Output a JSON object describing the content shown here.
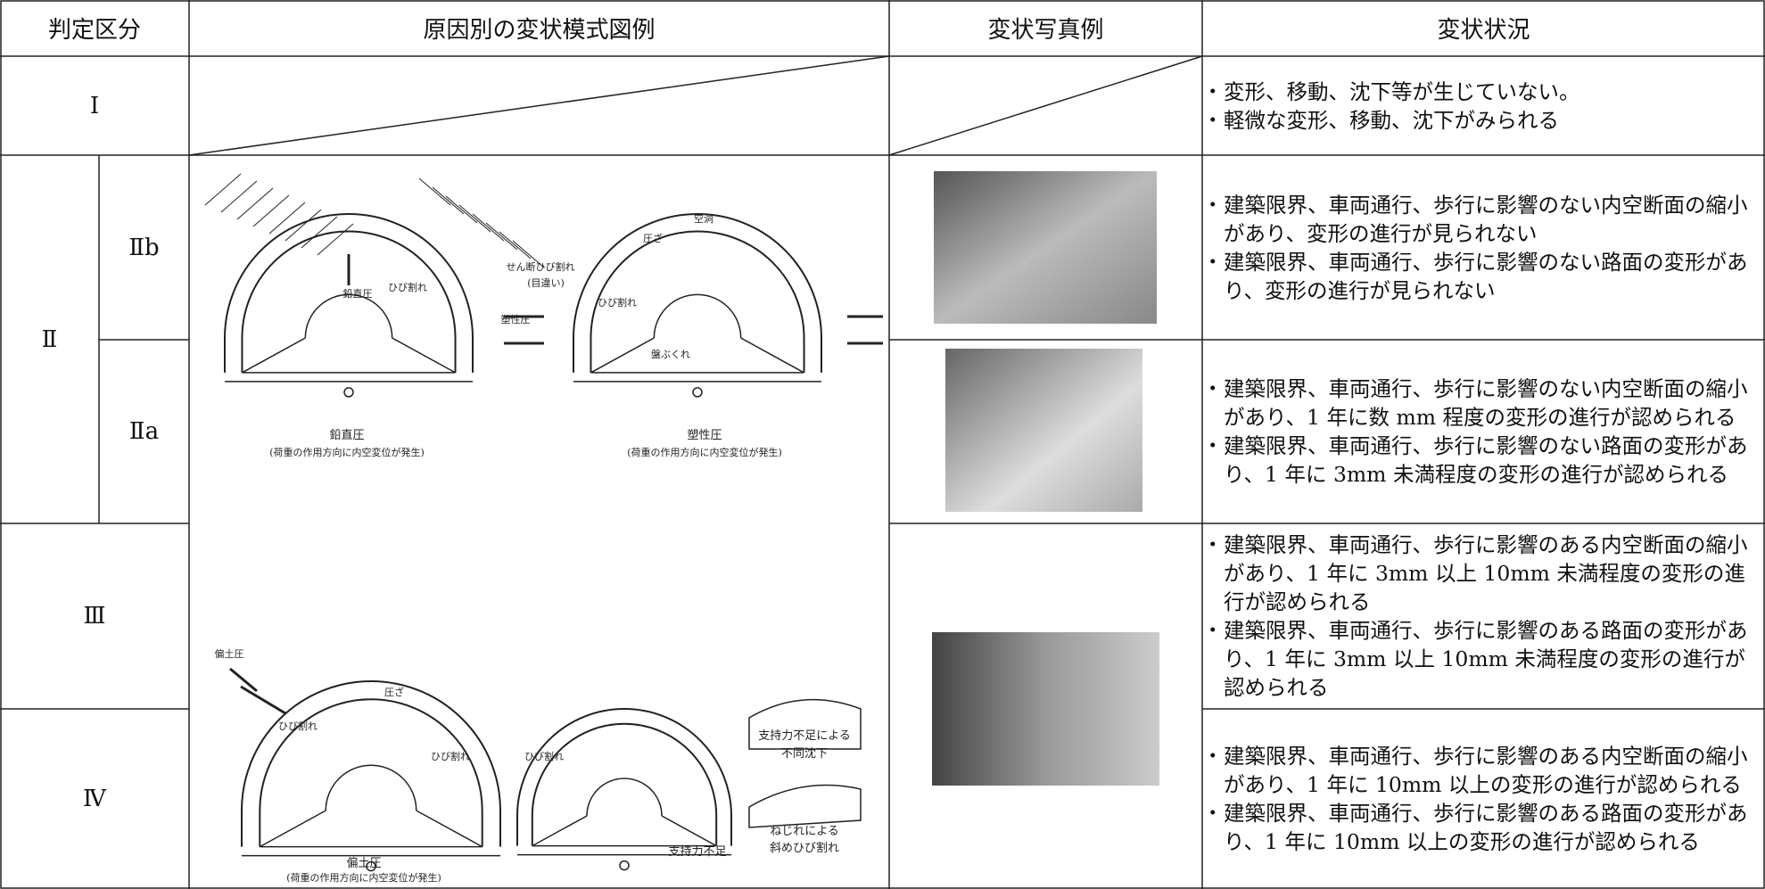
{
  "header": [
    "判定区分",
    "原因別の変状模式図例",
    "変状写真例",
    "変状状況"
  ],
  "grades": {
    "g1": "Ⅰ",
    "g2": "Ⅱ",
    "g2b": "Ⅱb",
    "g2a": "Ⅱa",
    "g3": "Ⅲ",
    "g4": "Ⅳ"
  },
  "status": [
    [
      "変形、移動、沈下等が生じていない。",
      "軽微な変形、移動、沈下がみられる"
    ],
    [
      "建築限界、車両通行、歩行に影響のない内空断面の縮小があり、変形の進行が見られない",
      "建築限界、車両通行、歩行に影響のない路面の変形があり、変形の進行が見られない"
    ],
    [
      "建築限界、車両通行、歩行に影響のない内空断面の縮小があり、1 年に数 mm 程度の変形の進行が認められる",
      "建築限界、車両通行、歩行に影響のない路面の変形があり、1 年に 3mm 未満程度の変形の進行が認められる"
    ],
    [
      "建築限界、車両通行、歩行に影響のある内空断面の縮小があり、1 年に 3mm 以上 10mm 未満程度の変形の進行が認められる",
      "建築限界、車両通行、歩行に影響のある路面の変形があり、1 年に 3mm 以上 10mm 未満程度の変形の進行が認められる"
    ],
    [
      "建築限界、車両通行、歩行に影響のある内空断面の縮小があり、1 年に 10mm 以上の変形の進行が認められる",
      "建築限界、車両通行、歩行に影響のある路面の変形があり、1 年に 10mm 以上の変形の進行が認められる"
    ]
  ],
  "diagrams": [
    {
      "labels": [
        "鉛直圧",
        "ひび割れ",
        "鉛直圧",
        "(荷重の作用方向に内空変位が発生)"
      ]
    },
    {
      "labels": [
        "空洞",
        "圧ざ",
        "せん断ひび割れ",
        "(目違い)",
        "ひび割れ",
        "塑性圧",
        "盤ぶくれ",
        "塑性圧",
        "(荷重の作用方向に内空変位が発生)"
      ]
    },
    {
      "labels": [
        "偏土圧",
        "圧ざ",
        "ひび割れ",
        "ひび割れ",
        "偏土圧",
        "(荷重の作用方向に内空変位が発生)"
      ]
    },
    {
      "labels": [
        "ひび割れ",
        "支持力不足"
      ]
    },
    {
      "labels": [
        "支持力不足による",
        "不同沈下",
        "ねじれによる",
        "斜めひび割れ"
      ]
    }
  ]
}
